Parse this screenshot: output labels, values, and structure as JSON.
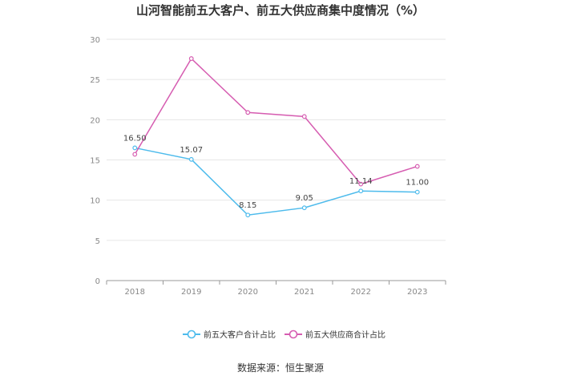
{
  "title": "山河智能前五大客户、前五大供应商集中度情况（%）",
  "source": "数据来源：恒生聚源",
  "chart_data": {
    "type": "line",
    "title": "山河智能前五大客户、前五大供应商集中度情况（%）",
    "xlabel": "",
    "ylabel": "",
    "categories": [
      "2018",
      "2019",
      "2020",
      "2021",
      "2022",
      "2023"
    ],
    "ylim": [
      0,
      30
    ],
    "yticks": [
      "0",
      "5",
      "10",
      "15",
      "20",
      "25",
      "30"
    ],
    "grid": true,
    "legend_position": "bottom",
    "series": [
      {
        "name": "前五大客户合计占比",
        "color": "#4dbbec",
        "values": [
          16.5,
          15.07,
          8.15,
          9.05,
          11.14,
          11.0
        ],
        "labels": [
          "16.50",
          "15.07",
          "8.15",
          "9.05",
          "11.14",
          "11.00"
        ]
      },
      {
        "name": "前五大供应商合计占比",
        "color": "#d65db1",
        "values": [
          15.7,
          27.6,
          20.9,
          20.4,
          12.0,
          14.2
        ]
      }
    ]
  }
}
